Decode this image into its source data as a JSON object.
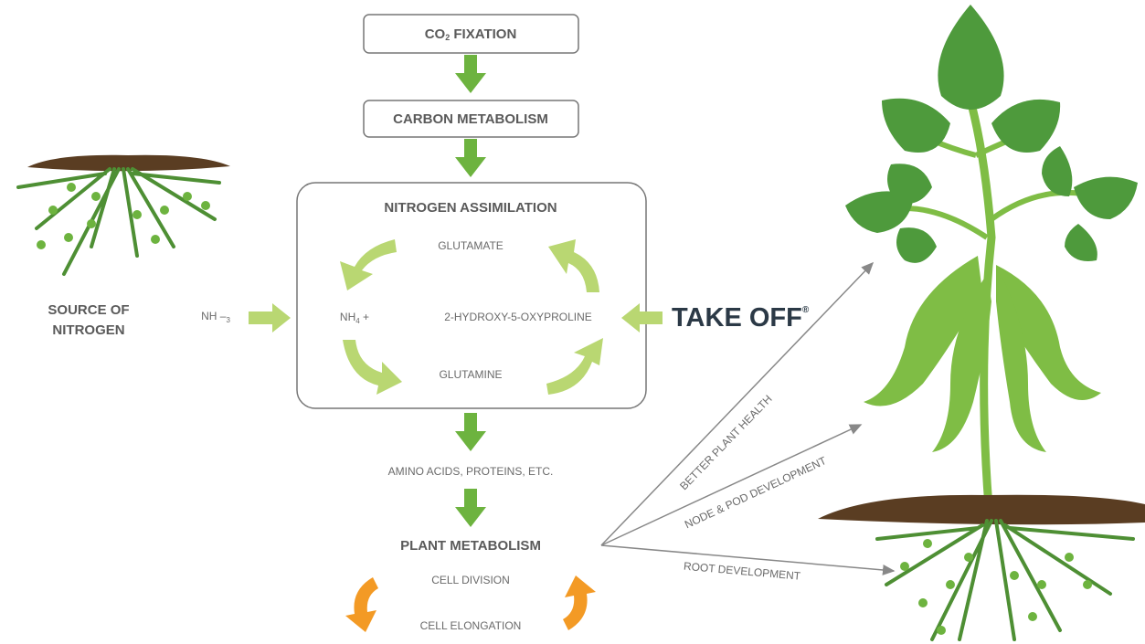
{
  "boxes": {
    "co2_fixation": {
      "main": "CO",
      "sub": "2",
      "rest": " FIXATION"
    },
    "carbon_metabolism": "CARBON METABOLISM",
    "nitrogen_assimilation": "NITROGEN ASSIMILATION"
  },
  "cycle": {
    "glutamate": "GLUTAMATE",
    "ammonium": {
      "main": "NH",
      "sub": "4",
      "rest": " +"
    },
    "hydroxy": "2-HYDROXY-5-OXYPROLINE",
    "glutamine": "GLUTAMINE"
  },
  "source": {
    "line1": "SOURCE OF",
    "line2": "NITROGEN",
    "ammonia": {
      "main": "NH –",
      "sub": "3"
    }
  },
  "product": {
    "name": "TAKE OFF",
    "mark": "®"
  },
  "outputs": {
    "amino": "AMINO ACIDS, PROTEINS, ETC.",
    "plant_metabolism": "PLANT METABOLISM",
    "cell_division": "CELL DIVISION",
    "cell_elongation": "CELL ELONGATION"
  },
  "benefits": {
    "health": "BETTER PLANT HEALTH",
    "node_pod": "NODE & POD DEVELOPMENT",
    "root": "ROOT DEVELOPMENT"
  }
}
